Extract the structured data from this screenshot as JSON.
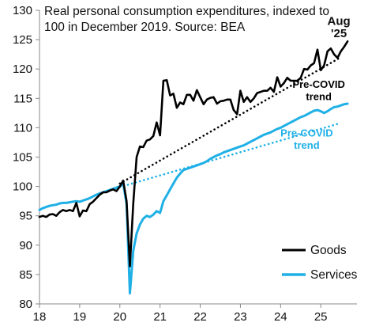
{
  "chart_data": {
    "type": "line",
    "title_lines": [
      "Real personal consumption expenditures, indexed to",
      "100 in December 2019. Source: BEA"
    ],
    "xlabel": "",
    "ylabel": "",
    "x_ticks": [
      "18",
      "19",
      "20",
      "21",
      "22",
      "23",
      "24",
      "25"
    ],
    "y_ticks": [
      80,
      85,
      90,
      95,
      100,
      105,
      110,
      115,
      120,
      125,
      130
    ],
    "xlim": [
      2018.0,
      2025.9
    ],
    "ylim": [
      80,
      130
    ],
    "grid": false,
    "legend_position": "bottom-right",
    "colors": {
      "goods": "#000000",
      "services": "#1fb0e6",
      "axis": "#888888"
    },
    "series": [
      {
        "name": "Goods",
        "style": "solid",
        "x": [
          2018.0,
          2018.083,
          2018.167,
          2018.25,
          2018.333,
          2018.417,
          2018.5,
          2018.583,
          2018.667,
          2018.75,
          2018.833,
          2018.917,
          2019.0,
          2019.083,
          2019.167,
          2019.25,
          2019.333,
          2019.417,
          2019.5,
          2019.583,
          2019.667,
          2019.75,
          2019.833,
          2019.917,
          2020.0,
          2020.083,
          2020.167,
          2020.25,
          2020.333,
          2020.417,
          2020.5,
          2020.583,
          2020.667,
          2020.75,
          2020.833,
          2020.917,
          2021.0,
          2021.083,
          2021.167,
          2021.25,
          2021.333,
          2021.417,
          2021.5,
          2021.583,
          2021.667,
          2021.75,
          2021.833,
          2021.917,
          2022.0,
          2022.083,
          2022.167,
          2022.25,
          2022.333,
          2022.417,
          2022.5,
          2022.583,
          2022.667,
          2022.75,
          2022.833,
          2022.917,
          2023.0,
          2023.083,
          2023.167,
          2023.25,
          2023.333,
          2023.417,
          2023.5,
          2023.583,
          2023.667,
          2023.75,
          2023.833,
          2023.917,
          2024.0,
          2024.083,
          2024.167,
          2024.25,
          2024.333,
          2024.417,
          2024.5,
          2024.583,
          2024.667,
          2024.75,
          2024.833,
          2024.917,
          2025.0,
          2025.083,
          2025.167,
          2025.25,
          2025.333,
          2025.417,
          2025.5,
          2025.583,
          2025.667
        ],
        "values": [
          94.8,
          95.0,
          94.8,
          95.2,
          95.3,
          95.0,
          95.6,
          96.0,
          95.8,
          96.0,
          95.8,
          97.2,
          94.9,
          95.9,
          95.8,
          97.0,
          97.4,
          98.0,
          98.6,
          99.0,
          99.0,
          99.3,
          99.5,
          99.2,
          100.0,
          101.0,
          97.5,
          86.4,
          97.0,
          105.0,
          106.8,
          106.7,
          107.8,
          108.0,
          108.6,
          110.9,
          108.7,
          118.0,
          118.1,
          115.5,
          115.8,
          113.4,
          114.3,
          114.0,
          115.6,
          115.6,
          114.6,
          116.4,
          115.2,
          114.0,
          114.8,
          115.1,
          115.2,
          114.1,
          114.5,
          114.6,
          114.8,
          114.8,
          113.0,
          112.3,
          116.3,
          114.4,
          115.2,
          114.4,
          115.0,
          115.9,
          116.1,
          116.3,
          116.3,
          116.8,
          116.1,
          118.6,
          117.0,
          117.6,
          118.5,
          118.0,
          118.0,
          118.0,
          118.5,
          120.0,
          119.9,
          120.6,
          121.0,
          123.3,
          119.8,
          120.6,
          123.0,
          123.5,
          122.5,
          121.9,
          123.0,
          123.8,
          124.7
        ]
      },
      {
        "name": "Services",
        "style": "solid",
        "x": [
          2018.0,
          2018.083,
          2018.167,
          2018.25,
          2018.333,
          2018.417,
          2018.5,
          2018.583,
          2018.667,
          2018.75,
          2018.833,
          2018.917,
          2019.0,
          2019.083,
          2019.167,
          2019.25,
          2019.333,
          2019.417,
          2019.5,
          2019.583,
          2019.667,
          2019.75,
          2019.833,
          2019.917,
          2020.0,
          2020.083,
          2020.167,
          2020.25,
          2020.333,
          2020.417,
          2020.5,
          2020.583,
          2020.667,
          2020.75,
          2020.833,
          2020.917,
          2021.0,
          2021.083,
          2021.167,
          2021.25,
          2021.333,
          2021.417,
          2021.5,
          2021.583,
          2021.667,
          2021.75,
          2021.833,
          2021.917,
          2022.0,
          2022.083,
          2022.167,
          2022.25,
          2022.333,
          2022.417,
          2022.5,
          2022.583,
          2022.667,
          2022.75,
          2022.833,
          2022.917,
          2023.0,
          2023.083,
          2023.167,
          2023.25,
          2023.333,
          2023.417,
          2023.5,
          2023.583,
          2023.667,
          2023.75,
          2023.833,
          2023.917,
          2024.0,
          2024.083,
          2024.167,
          2024.25,
          2024.333,
          2024.417,
          2024.5,
          2024.583,
          2024.667,
          2024.75,
          2024.833,
          2024.917,
          2025.0,
          2025.083,
          2025.167,
          2025.25,
          2025.333,
          2025.417,
          2025.5,
          2025.583,
          2025.667
        ],
        "values": [
          96.0,
          96.3,
          96.5,
          96.7,
          96.8,
          96.9,
          97.1,
          97.2,
          97.2,
          97.3,
          97.4,
          97.5,
          97.4,
          97.6,
          97.8,
          98.0,
          98.3,
          98.6,
          98.8,
          99.0,
          99.2,
          99.4,
          99.6,
          99.8,
          100.0,
          100.5,
          97.0,
          81.8,
          89.0,
          92.0,
          93.5,
          94.5,
          95.0,
          94.8,
          95.2,
          95.8,
          95.5,
          97.5,
          98.5,
          99.5,
          100.5,
          101.5,
          102.2,
          102.8,
          103.0,
          103.2,
          103.4,
          103.6,
          103.8,
          104.0,
          104.3,
          104.7,
          105.0,
          105.3,
          105.5,
          105.8,
          106.0,
          106.2,
          106.4,
          106.6,
          106.8,
          107.0,
          107.3,
          107.6,
          107.9,
          108.2,
          108.5,
          108.8,
          109.0,
          109.2,
          109.5,
          109.8,
          110.0,
          110.3,
          110.6,
          110.9,
          111.2,
          111.5,
          111.8,
          112.0,
          112.3,
          112.6,
          112.9,
          113.0,
          112.8,
          112.5,
          112.8,
          113.2,
          113.5,
          113.6,
          113.8,
          114.0,
          114.1
        ]
      },
      {
        "name": "Goods pre-COVID trend",
        "style": "dotted",
        "x": [
          2020.0,
          2025.5
        ],
        "values": [
          100.5,
          122.0
        ]
      },
      {
        "name": "Services pre-COVID trend",
        "style": "dotted",
        "x": [
          2019.5,
          2025.5
        ],
        "values": [
          98.9,
          110.8
        ]
      }
    ],
    "annotations": [
      {
        "text": "Aug",
        "series": "Goods",
        "x": 2025.45,
        "y": 127.5
      },
      {
        "text": "'25",
        "series": "Goods",
        "x": 2025.45,
        "y": 125.4
      },
      {
        "text": "Pre-COVID",
        "series": "Goods",
        "x": 2024.95,
        "y": 116.8
      },
      {
        "text": "trend",
        "series": "Goods",
        "x": 2024.95,
        "y": 114.7
      },
      {
        "text": "Pre-COVID",
        "series": "Services",
        "x": 2024.65,
        "y": 108.5
      },
      {
        "text": "trend",
        "series": "Services",
        "x": 2024.65,
        "y": 106.4
      }
    ],
    "legend": [
      {
        "label": "Goods",
        "series": "Goods"
      },
      {
        "label": "Services",
        "series": "Services"
      }
    ]
  }
}
